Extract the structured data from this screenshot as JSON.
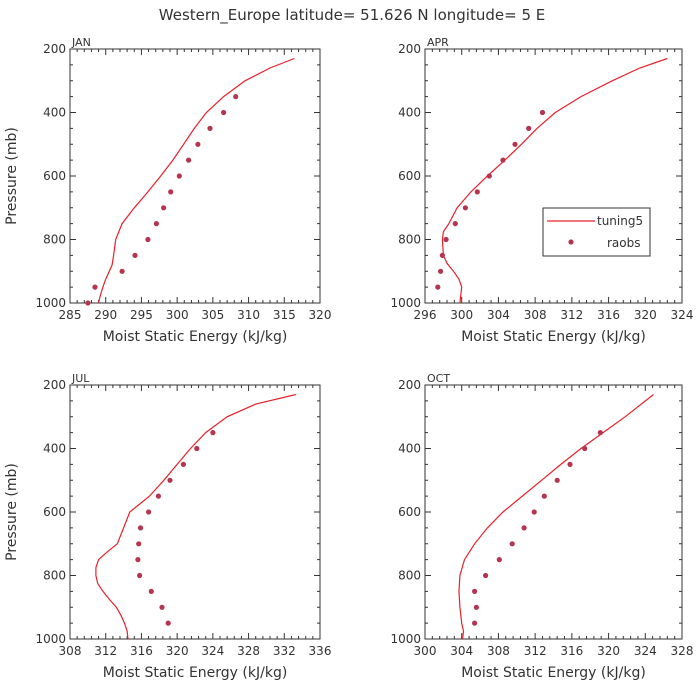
{
  "title": "Western_Europe  latitude= 51.626 N longitude= 5 E",
  "colors": {
    "line": "#e8202a",
    "dots": "#b5354f",
    "axis": "#333333"
  },
  "legend": {
    "line_label": "tuning5",
    "dots_label": "raobs",
    "panel": "APR"
  },
  "chart_data": [
    {
      "type": "line",
      "panel": "JAN",
      "xlabel": "Moist Static Energy (kJ/kg)",
      "ylabel": "Pressure (mb)",
      "xlim": [
        285,
        320
      ],
      "ylim": [
        1000,
        200
      ],
      "x_ticks": [
        285,
        290,
        295,
        300,
        305,
        310,
        315,
        320
      ],
      "y_ticks": [
        200,
        400,
        600,
        800,
        1000
      ],
      "series": [
        {
          "name": "tuning5",
          "style": "line",
          "points": [
            [
              289.0,
              1000
            ],
            [
              289.2,
              980
            ],
            [
              289.6,
              950
            ],
            [
              290.0,
              925
            ],
            [
              290.5,
              900
            ],
            [
              290.9,
              880
            ],
            [
              291.1,
              850
            ],
            [
              291.4,
              800
            ],
            [
              292.3,
              750
            ],
            [
              294.0,
              700
            ],
            [
              295.9,
              650
            ],
            [
              297.7,
              600
            ],
            [
              299.4,
              550
            ],
            [
              300.9,
              500
            ],
            [
              302.4,
              450
            ],
            [
              304.1,
              400
            ],
            [
              306.5,
              350
            ],
            [
              309.5,
              300
            ],
            [
              313.0,
              260
            ],
            [
              316.4,
              230
            ]
          ]
        },
        {
          "name": "raobs",
          "style": "points",
          "points": [
            [
              287.5,
              1000
            ],
            [
              288.5,
              950
            ],
            [
              292.3,
              900
            ],
            [
              294.1,
              850
            ],
            [
              295.9,
              800
            ],
            [
              297.1,
              750
            ],
            [
              298.1,
              700
            ],
            [
              299.1,
              650
            ],
            [
              300.3,
              600
            ],
            [
              301.6,
              550
            ],
            [
              302.9,
              500
            ],
            [
              304.6,
              450
            ],
            [
              306.5,
              400
            ],
            [
              308.2,
              350
            ]
          ]
        }
      ]
    },
    {
      "type": "line",
      "panel": "APR",
      "xlabel": "Moist Static Energy (kJ/kg)",
      "ylabel": "",
      "xlim": [
        296,
        324
      ],
      "ylim": [
        1000,
        200
      ],
      "x_ticks": [
        296,
        300,
        304,
        308,
        312,
        316,
        320,
        324
      ],
      "y_ticks": [
        200,
        400,
        600,
        800,
        1000
      ],
      "legend_position": "right-middle",
      "series": [
        {
          "name": "tuning5",
          "style": "line",
          "points": [
            [
              299.8,
              1000
            ],
            [
              299.9,
              975
            ],
            [
              300.0,
              950
            ],
            [
              299.7,
              925
            ],
            [
              299.1,
              900
            ],
            [
              298.4,
              875
            ],
            [
              298.0,
              850
            ],
            [
              297.9,
              800
            ],
            [
              298.0,
              775
            ],
            [
              298.6,
              750
            ],
            [
              299.5,
              700
            ],
            [
              301.0,
              650
            ],
            [
              302.8,
              600
            ],
            [
              304.7,
              550
            ],
            [
              306.5,
              500
            ],
            [
              308.2,
              450
            ],
            [
              310.2,
              400
            ],
            [
              313.0,
              350
            ],
            [
              316.4,
              300
            ],
            [
              319.4,
              260
            ],
            [
              322.4,
              230
            ]
          ]
        },
        {
          "name": "raobs",
          "style": "points",
          "points": [
            [
              297.4,
              950
            ],
            [
              297.7,
              900
            ],
            [
              297.9,
              850
            ],
            [
              298.3,
              800
            ],
            [
              299.3,
              750
            ],
            [
              300.4,
              700
            ],
            [
              301.7,
              650
            ],
            [
              303.0,
              600
            ],
            [
              304.5,
              550
            ],
            [
              305.8,
              500
            ],
            [
              307.3,
              450
            ],
            [
              308.8,
              400
            ]
          ]
        }
      ]
    },
    {
      "type": "line",
      "panel": "JUL",
      "xlabel": "Moist Static Energy (kJ/kg)",
      "ylabel": "Pressure (mb)",
      "xlim": [
        308,
        336
      ],
      "ylim": [
        1000,
        200
      ],
      "x_ticks": [
        308,
        312,
        316,
        320,
        324,
        328,
        332,
        336
      ],
      "y_ticks": [
        200,
        400,
        600,
        800,
        1000
      ],
      "series": [
        {
          "name": "tuning5",
          "style": "line",
          "points": [
            [
              314.5,
              1000
            ],
            [
              314.4,
              975
            ],
            [
              314.1,
              950
            ],
            [
              313.7,
              925
            ],
            [
              313.2,
              900
            ],
            [
              312.4,
              875
            ],
            [
              311.7,
              850
            ],
            [
              311.1,
              825
            ],
            [
              310.9,
              800
            ],
            [
              310.9,
              775
            ],
            [
              311.2,
              750
            ],
            [
              312.2,
              725
            ],
            [
              313.3,
              700
            ],
            [
              314.0,
              650
            ],
            [
              314.7,
              600
            ],
            [
              315.8,
              575
            ],
            [
              316.9,
              550
            ],
            [
              318.5,
              500
            ],
            [
              320.0,
              450
            ],
            [
              321.5,
              400
            ],
            [
              323.2,
              350
            ],
            [
              325.6,
              300
            ],
            [
              328.8,
              260
            ],
            [
              333.3,
              230
            ]
          ]
        },
        {
          "name": "raobs",
          "style": "points",
          "points": [
            [
              319.0,
              950
            ],
            [
              318.3,
              900
            ],
            [
              317.1,
              850
            ],
            [
              315.8,
              800
            ],
            [
              315.6,
              750
            ],
            [
              315.7,
              700
            ],
            [
              315.9,
              650
            ],
            [
              316.8,
              600
            ],
            [
              317.9,
              550
            ],
            [
              319.2,
              500
            ],
            [
              320.7,
              450
            ],
            [
              322.2,
              400
            ],
            [
              324.0,
              350
            ]
          ]
        }
      ]
    },
    {
      "type": "line",
      "panel": "OCT",
      "xlabel": "Moist Static Energy (kJ/kg)",
      "ylabel": "",
      "xlim": [
        300,
        328
      ],
      "ylim": [
        1000,
        200
      ],
      "x_ticks": [
        300,
        304,
        308,
        312,
        316,
        320,
        324,
        328
      ],
      "y_ticks": [
        200,
        400,
        600,
        800,
        1000
      ],
      "series": [
        {
          "name": "tuning5",
          "style": "line",
          "points": [
            [
              304.1,
              1000
            ],
            [
              304.2,
              975
            ],
            [
              304.0,
              950
            ],
            [
              303.8,
              900
            ],
            [
              303.7,
              850
            ],
            [
              303.8,
              800
            ],
            [
              304.3,
              750
            ],
            [
              305.4,
              700
            ],
            [
              306.8,
              650
            ],
            [
              308.5,
              600
            ],
            [
              310.6,
              550
            ],
            [
              312.7,
              500
            ],
            [
              314.8,
              450
            ],
            [
              317.0,
              400
            ],
            [
              319.4,
              350
            ],
            [
              321.8,
              300
            ],
            [
              324.9,
              230
            ]
          ]
        },
        {
          "name": "raobs",
          "style": "points",
          "points": [
            [
              305.4,
              950
            ],
            [
              305.6,
              900
            ],
            [
              305.4,
              850
            ],
            [
              306.6,
              800
            ],
            [
              308.1,
              750
            ],
            [
              309.5,
              700
            ],
            [
              310.8,
              650
            ],
            [
              311.9,
              600
            ],
            [
              313.0,
              550
            ],
            [
              314.4,
              500
            ],
            [
              315.8,
              450
            ],
            [
              317.4,
              400
            ],
            [
              319.1,
              350
            ]
          ]
        }
      ]
    }
  ]
}
